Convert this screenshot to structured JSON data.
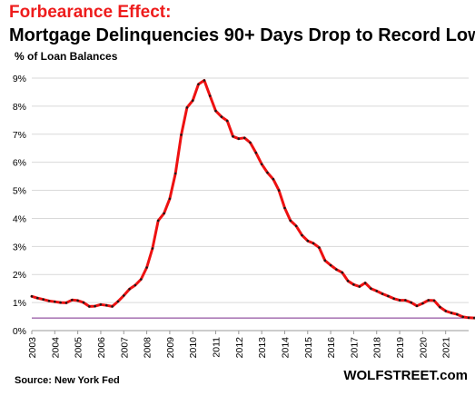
{
  "header": {
    "effect_label": "Forbearance Effect:",
    "title": "Mortgage Delinquencies 90+ Days Drop to Record Low",
    "unit_label": "% of Loan Balances"
  },
  "footer": {
    "source": "Source: New York Fed",
    "brand": "WOLFSTREET.com"
  },
  "colors": {
    "line": "#ee1111",
    "marker": "#1a1a1a",
    "reference_line": "#7a2a8c",
    "grid": "#d9d9d9",
    "title_accent": "#ee1c1c"
  },
  "chart_data": {
    "type": "line",
    "grid": "horizontal",
    "ylim": [
      0,
      9
    ],
    "y_ticks": [
      "0%",
      "1%",
      "2%",
      "3%",
      "4%",
      "5%",
      "6%",
      "7%",
      "8%",
      "9%"
    ],
    "x_ticks": [
      "2003",
      "2004",
      "2005",
      "2006",
      "2007",
      "2008",
      "2009",
      "2010",
      "2011",
      "2012",
      "2013",
      "2014",
      "2015",
      "2016",
      "2017",
      "2018",
      "2019",
      "2020",
      "2021"
    ],
    "x_start": 2003.0,
    "x_step": 0.25,
    "reference_line_value": 0.45,
    "series": [
      {
        "values": [
          1.22,
          1.16,
          1.11,
          1.06,
          1.03,
          1.0,
          0.99,
          1.09,
          1.07,
          1.0,
          0.86,
          0.87,
          0.93,
          0.9,
          0.86,
          1.04,
          1.25,
          1.48,
          1.62,
          1.83,
          2.25,
          2.93,
          3.92,
          4.18,
          4.7,
          5.6,
          6.98,
          7.95,
          8.2,
          8.78,
          8.92,
          8.37,
          7.83,
          7.62,
          7.48,
          6.92,
          6.84,
          6.87,
          6.7,
          6.34,
          5.93,
          5.63,
          5.4,
          5.0,
          4.37,
          3.92,
          3.73,
          3.4,
          3.2,
          3.11,
          2.96,
          2.5,
          2.33,
          2.18,
          2.07,
          1.77,
          1.64,
          1.57,
          1.7,
          1.5,
          1.41,
          1.31,
          1.23,
          1.14,
          1.08,
          1.08,
          1.0,
          0.88,
          0.97,
          1.08,
          1.07,
          0.84,
          0.7,
          0.63,
          0.58,
          0.49,
          0.46,
          0.45
        ]
      }
    ]
  }
}
